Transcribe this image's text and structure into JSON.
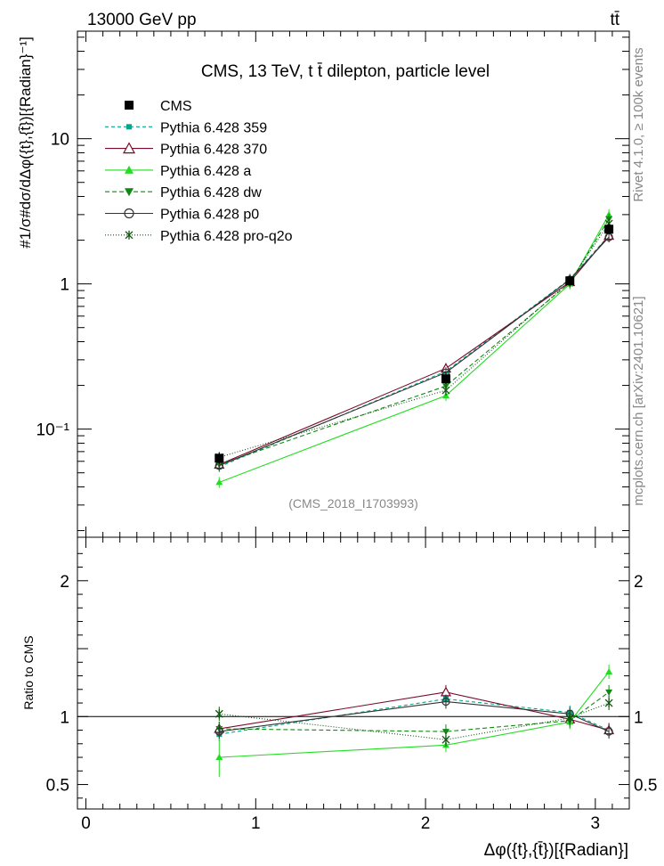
{
  "header": {
    "energy_label": "13000 GeV pp",
    "process_label": "tt̄",
    "rivet_label": "Rivet 4.1.0, ≥ 100k events",
    "mcplots_label": "mcplots.cern.ch [arXiv:2401.10621]",
    "analysis_id": "(CMS_2018_I1703993)"
  },
  "chart_data": {
    "type": "line",
    "title": "CMS, 13 TeV, t t̄ dilepton, particle level",
    "xlabel": "Δφ({t},{t̄})[{Radian}]",
    "ylabel": "#1/σ#dσ/dΔφ({t},{t̄})[{Radian}⁻¹]",
    "ratio_ylabel": "Ratio to CMS",
    "xlim": [
      -0.05,
      3.2
    ],
    "ylim": [
      0.018,
      55
    ],
    "ratio_ylim": [
      0.32,
      2.32
    ],
    "x_ticks": [
      "0",
      "1",
      "2",
      "3"
    ],
    "x_tick_values": [
      0,
      1,
      2,
      3
    ],
    "y_tick_labels": [
      "10⁻¹",
      "1",
      "10"
    ],
    "y_tick_values": [
      0.1,
      1,
      10
    ],
    "ratio_tick_labels": [
      "0.5",
      "1",
      "2"
    ],
    "ratio_tick_values": [
      0.5,
      1,
      2
    ],
    "x": [
      0.785,
      2.12,
      2.85,
      3.08
    ],
    "series": [
      {
        "name": "CMS",
        "color": "#000000",
        "marker": "square",
        "dash": "",
        "values": [
          0.063,
          0.222,
          1.05,
          2.38
        ],
        "ratio": [
          1.0,
          1.0,
          1.0,
          1.0
        ]
      },
      {
        "name": "Pythia 6.428 359",
        "color": "#00a88c",
        "marker": "smallsquare",
        "dash": "4,3",
        "values": [
          0.055,
          0.25,
          1.08,
          2.15
        ],
        "ratio": [
          0.87,
          1.13,
          1.03,
          0.9
        ]
      },
      {
        "name": "Pythia 6.428 370",
        "color": "#7a0a2a",
        "marker": "opentriangle",
        "dash": "",
        "values": [
          0.057,
          0.262,
          1.03,
          2.15
        ],
        "ratio": [
          0.91,
          1.18,
          0.98,
          0.9
        ]
      },
      {
        "name": "Pythia 6.428 a",
        "color": "#22dd22",
        "marker": "triangle",
        "dash": "",
        "values": [
          0.043,
          0.17,
          1.0,
          3.0
        ],
        "ratio": [
          0.7,
          0.79,
          0.96,
          1.33
        ]
      },
      {
        "name": "Pythia 6.428 dw",
        "color": "#118811",
        "marker": "invtriangle",
        "dash": "5,3",
        "values": [
          0.057,
          0.198,
          1.02,
          2.8
        ],
        "ratio": [
          0.91,
          0.89,
          0.97,
          1.18
        ]
      },
      {
        "name": "Pythia 6.428 p0",
        "color": "#333333",
        "marker": "opencircle",
        "dash": "",
        "values": [
          0.056,
          0.245,
          1.07,
          2.1
        ],
        "ratio": [
          0.89,
          1.11,
          1.02,
          0.89
        ]
      },
      {
        "name": "Pythia 6.428 pro-q2o",
        "color": "#115511",
        "marker": "star",
        "dash": "1,2",
        "values": [
          0.064,
          0.185,
          1.04,
          2.6
        ],
        "ratio": [
          1.02,
          0.83,
          0.99,
          1.1
        ]
      }
    ]
  }
}
